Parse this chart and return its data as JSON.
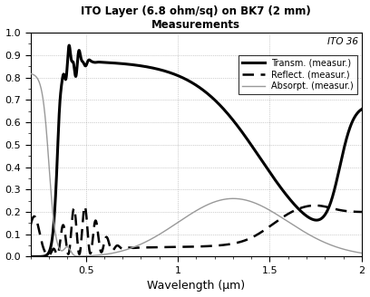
{
  "title_line1": "ITO Layer (6.8 ohm/sq) on BK7 (2 mm)",
  "title_line2": "Measurements",
  "xlabel": "Wavelength (μm)",
  "annotation": "ITO 36",
  "xlim": [
    0.2,
    2.0
  ],
  "ylim": [
    0.0,
    1.0
  ],
  "yticks": [
    0,
    0.1,
    0.2,
    0.3,
    0.4,
    0.5,
    0.6,
    0.7,
    0.8,
    0.9,
    1
  ],
  "xticks": [
    0.5,
    1.0,
    1.5,
    2.0
  ],
  "legend_labels": [
    "Transm. (measur.)",
    "Reflect. (measur.)",
    "Absorpt. (measur.)"
  ],
  "transm_color": "#000000",
  "reflect_color": "#000000",
  "absorpt_color": "#999999",
  "bg_color": "#ffffff"
}
